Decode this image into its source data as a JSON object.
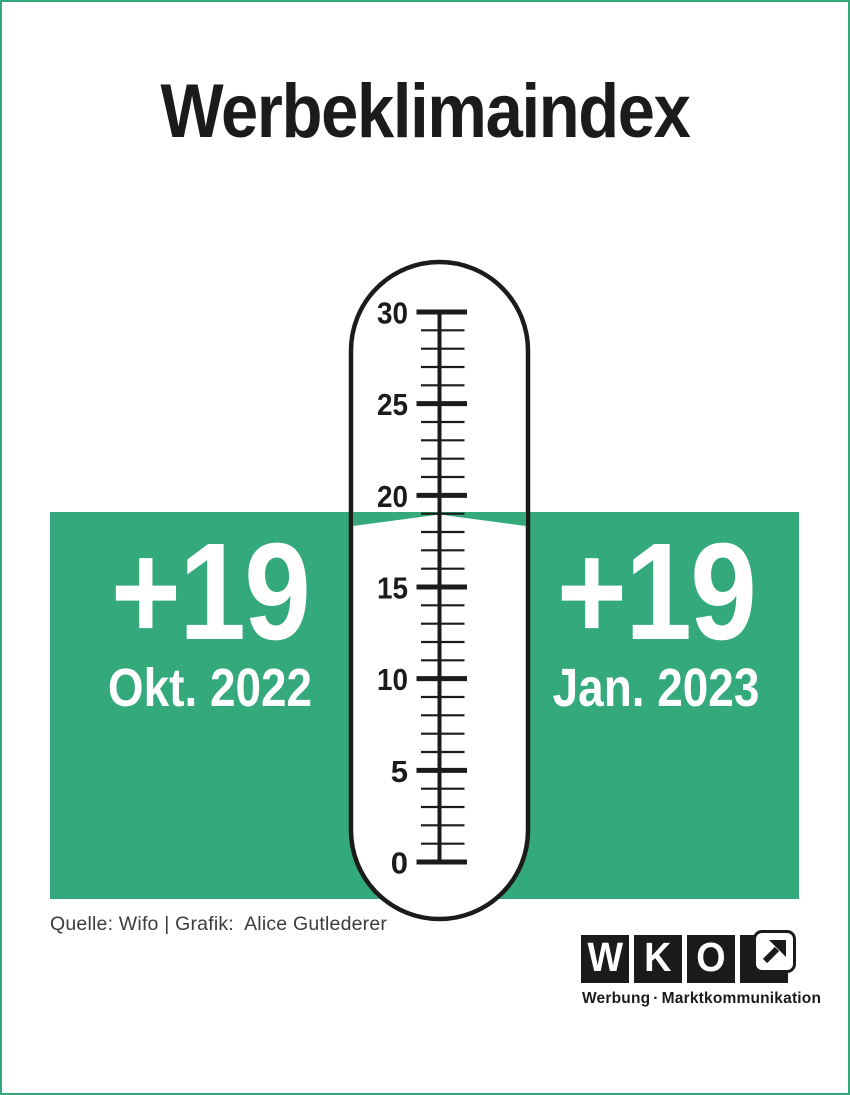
{
  "page": {
    "title": "Werbeklimaindex",
    "background": "#ffffff",
    "border_color": "#33a97c"
  },
  "chart_data": {
    "type": "thermometer-gauge",
    "title": "Werbeklimaindex",
    "scale": {
      "min": 0,
      "max": 30,
      "minor_step": 1,
      "major_step": 5,
      "major_tick_labels": [
        "0",
        "5",
        "10",
        "15",
        "20",
        "25",
        "30"
      ]
    },
    "current_level": 19,
    "readings": [
      {
        "value": "+19",
        "period": "Okt. 2022"
      },
      {
        "value": "+19",
        "period": "Jan. 2023"
      }
    ],
    "accent_color": "#33a97c",
    "value_text_color": "#ffffff",
    "scale_color": "#1b1b19"
  },
  "footer": {
    "source": "Quelle: Wifo | Grafik:  Alice Gutlederer"
  },
  "logo": {
    "letters": [
      "W",
      "K",
      "O"
    ],
    "arrow_icon": "arrow-up-right",
    "tagline": {
      "left": "Werbung",
      "separator": "·",
      "right": "Marktkommunikation"
    }
  }
}
